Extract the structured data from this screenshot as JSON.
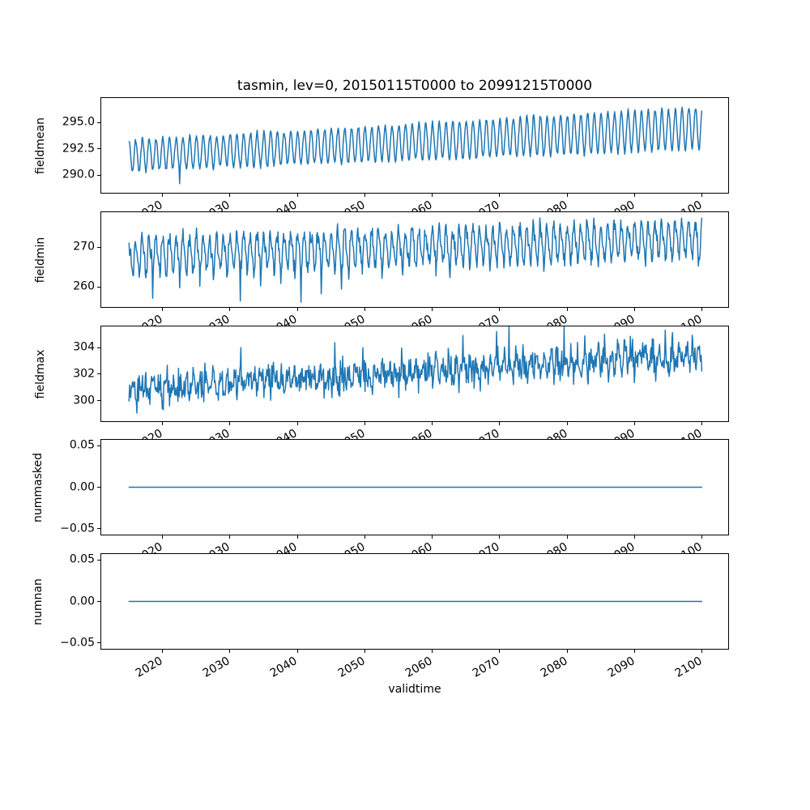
{
  "figure": {
    "title": "tasmin, lev=0, 20150115T0000 to 20991215T0000",
    "background_color": "#ffffff",
    "line_color": "#1f77b4",
    "axis_color": "#000000"
  },
  "x_axis": {
    "label": "validtime",
    "lim": [
      2010.8,
      2104.0
    ],
    "tick_rotation_deg": 30,
    "data_start": 2015.042,
    "data_end": 2099.958,
    "points_per_year": 12,
    "ticks": [
      {
        "v": 2020,
        "label": "2020"
      },
      {
        "v": 2030,
        "label": "2030"
      },
      {
        "v": 2040,
        "label": "2040"
      },
      {
        "v": 2050,
        "label": "2050"
      },
      {
        "v": 2060,
        "label": "2060"
      },
      {
        "v": 2070,
        "label": "2070"
      },
      {
        "v": 2080,
        "label": "2080"
      },
      {
        "v": 2090,
        "label": "2090"
      },
      {
        "v": 2100,
        "label": "2100"
      }
    ]
  },
  "chart_data": [
    {
      "type": "line",
      "name": "fieldmean",
      "ylabel": "fieldmean",
      "color": "#1f77b4",
      "ylim": [
        288.33,
        297.35
      ],
      "yticks": [
        {
          "v": 290.0,
          "label": "290.0"
        },
        {
          "v": 292.5,
          "label": "292.5"
        },
        {
          "v": 295.0,
          "label": "295.0"
        }
      ],
      "profile": {
        "kind": "seasonal",
        "seed": 7,
        "base_start": 291.85,
        "base_end": 294.5,
        "amp_start": 1.45,
        "amp_end": 2.0,
        "peak_frac": 0.04,
        "noise": 0.12,
        "deep_dips": [
          [
            2022,
            289.2
          ]
        ],
        "summary": "Monthly mean tasmin: regular annual cycle from about 290.4-293.3 in 2015 rising steadily to about 292.5-296.6 by 2100; one early cold trough near 289.2 around 2022."
      }
    },
    {
      "type": "line",
      "name": "fieldmin",
      "ylabel": "fieldmin",
      "color": "#1f77b4",
      "ylim": [
        255.0,
        278.8
      ],
      "yticks": [
        {
          "v": 260,
          "label": "260"
        },
        {
          "v": 270,
          "label": "270"
        }
      ],
      "profile": {
        "kind": "seasonal",
        "seed": 13,
        "base_start": 267.9,
        "base_end": 272.1,
        "amp_start": 4.3,
        "amp_end": 4.3,
        "peak_frac": 0.04,
        "noise": 1.0,
        "harmonic2_amp": 0.9,
        "harmonic2_phase": 1.2,
        "dip_prob_start": 0.05,
        "dip_prob_end": 0.015,
        "dip_depth": [
          2,
          5
        ],
        "deep_dips": [
          [
            2018,
            257.2
          ],
          [
            2022,
            259.8
          ],
          [
            2025,
            260.2
          ],
          [
            2031,
            256.5
          ],
          [
            2034,
            260.3
          ],
          [
            2037,
            260.9
          ],
          [
            2040,
            256.2
          ],
          [
            2043,
            258.3
          ],
          [
            2046,
            259.5
          ],
          [
            2052,
            262.2
          ],
          [
            2060,
            262.8
          ]
        ],
        "clamp_min": 255.5,
        "summary": "Jagged annual cycle roughly 262-274 early, rising to about 266-277 by 2100, with occasional deep cold spikes down to about 256 mostly before 2060."
      }
    },
    {
      "type": "line",
      "name": "fieldmax",
      "ylabel": "fieldmax",
      "color": "#1f77b4",
      "ylim": [
        298.48,
        305.58
      ],
      "yticks": [
        {
          "v": 300,
          "label": "300"
        },
        {
          "v": 302,
          "label": "302"
        },
        {
          "v": 304,
          "label": "304"
        }
      ],
      "profile": {
        "kind": "seasonal",
        "seed": 21,
        "base_start": 300.85,
        "base_end": 303.45,
        "amp_start": 0.5,
        "amp_end": 0.65,
        "peak_frac": 0.58,
        "noise": 0.55,
        "spike_prob": 0.012,
        "spike_mag": [
          1.0,
          2.2
        ],
        "peak_events": [
          [
            2064,
            304.9
          ],
          [
            2069,
            305.2
          ],
          [
            2079,
            305.6
          ],
          [
            2085,
            305.0
          ],
          [
            2094,
            305.3
          ]
        ],
        "clamp_max": 305.6,
        "summary": "Noisy monthly series around 300-302 early rising to about 302.5-304.5 by 2100, with warm spikes up to about 305.6 near 2079."
      }
    },
    {
      "type": "line",
      "name": "nummasked",
      "ylabel": "nummasked",
      "color": "#1f77b4",
      "ylim": [
        -0.0572,
        0.0572
      ],
      "yticks": [
        {
          "v": -0.05,
          "label": "−0.05"
        },
        {
          "v": 0.0,
          "label": "0.00"
        },
        {
          "v": 0.05,
          "label": "0.05"
        }
      ],
      "profile": {
        "kind": "constant",
        "value": 0,
        "summary": "Constant 0 over the whole 2015-2100 period."
      }
    },
    {
      "type": "line",
      "name": "numnan",
      "ylabel": "numnan",
      "color": "#1f77b4",
      "ylim": [
        -0.0572,
        0.0572
      ],
      "yticks": [
        {
          "v": -0.05,
          "label": "−0.05"
        },
        {
          "v": 0.0,
          "label": "0.00"
        },
        {
          "v": 0.05,
          "label": "0.05"
        }
      ],
      "profile": {
        "kind": "constant",
        "value": 0,
        "summary": "Constant 0 over the whole 2015-2100 period."
      }
    }
  ]
}
